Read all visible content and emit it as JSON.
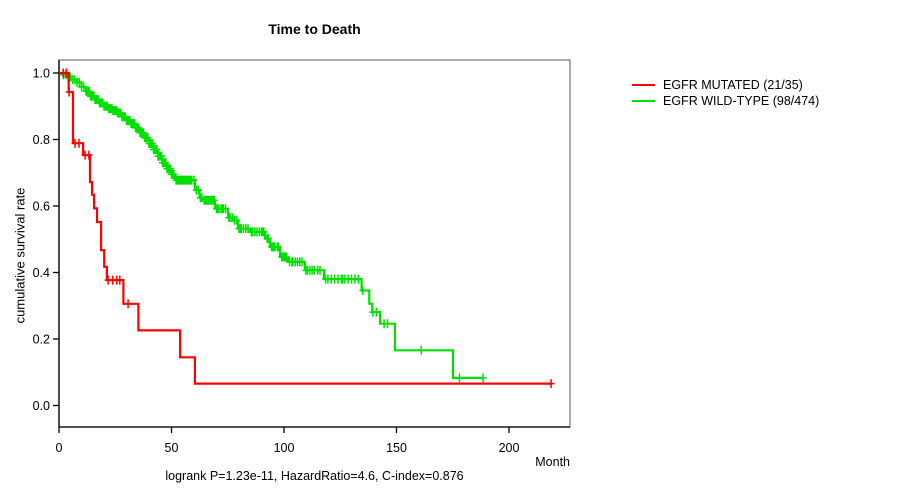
{
  "title": "Time to Death",
  "footer": "logrank P=1.23e-11, HazardRatio=4.6, C-index=0.876",
  "axes": {
    "x": {
      "label": "Month",
      "tick_labels": [
        "0",
        "50",
        "100",
        "150",
        "200"
      ],
      "tick_values": [
        0,
        50,
        100,
        150,
        200
      ]
    },
    "y": {
      "label": "cumulative survival rate",
      "tick_labels": [
        "0.0",
        "0.2",
        "0.4",
        "0.6",
        "0.8",
        "1.0"
      ],
      "tick_values": [
        0,
        0.2,
        0.4,
        0.6,
        0.8,
        1.0
      ]
    }
  },
  "legend": {
    "items": [
      {
        "label": "EGFR MUTATED (21/35)",
        "color": "#ff0000"
      },
      {
        "label": "EGFR WILD-TYPE (98/474)",
        "color": "#00e000"
      }
    ]
  },
  "colors": {
    "mutated": "#ff0000",
    "wildtype": "#00e000",
    "box_border": "#808080",
    "axis": "#000000",
    "text": "#000000",
    "background": "#ffffff"
  },
  "chart_data": {
    "type": "line",
    "subtype": "kaplan-meier-step",
    "title": "Time to Death",
    "xlabel": "Month",
    "ylabel": "cumulative survival rate",
    "xlim": [
      0,
      227
    ],
    "ylim": [
      0,
      1.04
    ],
    "grid": false,
    "legend_position": "right-outside",
    "annotation": "logrank P=1.23e-11, HazardRatio=4.6, C-index=0.876",
    "series": [
      {
        "name": "EGFR MUTATED (21/35)",
        "color": "#ff0000",
        "events": "21/35",
        "end_month": 218.7,
        "steps": [
          [
            0,
            1.0
          ],
          [
            4.3,
            0.943
          ],
          [
            6.2,
            0.789
          ],
          [
            10.7,
            0.753
          ],
          [
            13.8,
            0.672
          ],
          [
            14.7,
            0.634
          ],
          [
            15.6,
            0.593
          ],
          [
            16.9,
            0.552
          ],
          [
            18.7,
            0.467
          ],
          [
            20.1,
            0.417
          ],
          [
            21.3,
            0.377
          ],
          [
            28.6,
            0.306
          ],
          [
            35.3,
            0.226
          ],
          [
            53.8,
            0.145
          ],
          [
            60.4,
            0.066
          ]
        ],
        "censor_months": [
          1.9,
          3.3,
          4.5,
          7.1,
          8.9,
          11.6,
          13.3,
          21.8,
          23.9,
          25.7,
          27.0,
          30.7,
          218.7
        ]
      },
      {
        "name": "EGFR WILD-TYPE (98/474)",
        "color": "#00e000",
        "events": "98/474",
        "end_month": 188.5,
        "steps": [
          [
            0,
            1.0
          ],
          [
            2,
            0.995
          ],
          [
            4,
            0.988
          ],
          [
            6,
            0.98
          ],
          [
            8,
            0.972
          ],
          [
            10,
            0.958
          ],
          [
            12,
            0.945
          ],
          [
            14,
            0.93
          ],
          [
            16,
            0.92
          ],
          [
            18,
            0.91
          ],
          [
            20,
            0.9
          ],
          [
            22,
            0.893
          ],
          [
            24,
            0.887
          ],
          [
            26,
            0.88
          ],
          [
            28,
            0.868
          ],
          [
            30,
            0.857
          ],
          [
            32,
            0.848
          ],
          [
            34,
            0.835
          ],
          [
            36,
            0.82
          ],
          [
            38,
            0.805
          ],
          [
            40,
            0.788
          ],
          [
            42,
            0.77
          ],
          [
            44,
            0.75
          ],
          [
            46,
            0.73
          ],
          [
            48,
            0.712
          ],
          [
            50,
            0.695
          ],
          [
            51.6,
            0.678
          ],
          [
            60.4,
            0.648
          ],
          [
            62.5,
            0.625
          ],
          [
            64,
            0.617
          ],
          [
            69.3,
            0.592
          ],
          [
            75.1,
            0.565
          ],
          [
            77.5,
            0.557
          ],
          [
            79.6,
            0.532
          ],
          [
            84.9,
            0.522
          ],
          [
            91.6,
            0.502
          ],
          [
            93.8,
            0.477
          ],
          [
            98.2,
            0.447
          ],
          [
            101.8,
            0.432
          ],
          [
            109.3,
            0.407
          ],
          [
            117.8,
            0.38
          ],
          [
            134.5,
            0.346
          ],
          [
            137.9,
            0.306
          ],
          [
            139.2,
            0.281
          ],
          [
            142.7,
            0.246
          ],
          [
            149.3,
            0.166
          ],
          [
            175.1,
            0.083
          ]
        ],
        "censor_months": [
          2,
          3,
          4,
          5,
          6,
          7,
          8,
          9,
          10,
          11,
          12,
          12.5,
          13,
          13.5,
          14,
          14.5,
          15,
          15.5,
          16,
          16.5,
          17,
          17.5,
          18,
          18.5,
          19,
          19.5,
          20,
          20.5,
          21,
          21.5,
          22,
          22.5,
          23,
          23.5,
          24,
          24.5,
          25,
          25.5,
          26,
          26.5,
          27,
          27.5,
          28,
          28.5,
          29,
          29.5,
          30,
          30.5,
          31,
          31.5,
          32,
          32.5,
          33,
          33.5,
          34,
          34.5,
          35,
          35.5,
          36,
          36.5,
          37,
          37.5,
          38,
          38.5,
          39,
          39.5,
          40,
          40.5,
          41,
          41.5,
          42,
          42.5,
          43,
          43.5,
          44,
          44.5,
          45,
          45.5,
          46,
          46.5,
          47,
          47.5,
          48,
          48.5,
          49,
          49.5,
          50,
          50.5,
          51,
          52,
          52.5,
          53,
          53.5,
          54,
          54.5,
          55,
          55.5,
          56,
          56.5,
          57,
          57.5,
          58,
          58.5,
          59,
          60,
          61,
          62,
          62.8,
          63.5,
          64.5,
          65,
          65.5,
          66,
          66.5,
          67,
          67.5,
          68,
          68.5,
          69,
          70,
          70.5,
          71,
          72,
          72.5,
          73,
          74,
          75.5,
          76,
          77,
          78,
          79,
          80,
          80.5,
          81,
          82,
          83,
          84,
          85.5,
          86,
          87,
          88,
          89,
          90,
          90.5,
          91,
          92.5,
          93,
          94.5,
          95,
          95.5,
          96,
          97,
          97.5,
          99,
          99.5,
          100,
          100.5,
          101,
          102.5,
          103.5,
          104,
          105,
          106,
          107,
          108,
          109.8,
          110.5,
          111.5,
          112.5,
          113.5,
          115,
          116,
          118.5,
          119.5,
          121,
          122.5,
          124,
          125.5,
          126,
          127,
          128.5,
          130,
          131.5,
          133,
          135,
          139.5,
          141,
          144.5,
          146,
          161,
          178,
          188.5
        ]
      }
    ]
  }
}
